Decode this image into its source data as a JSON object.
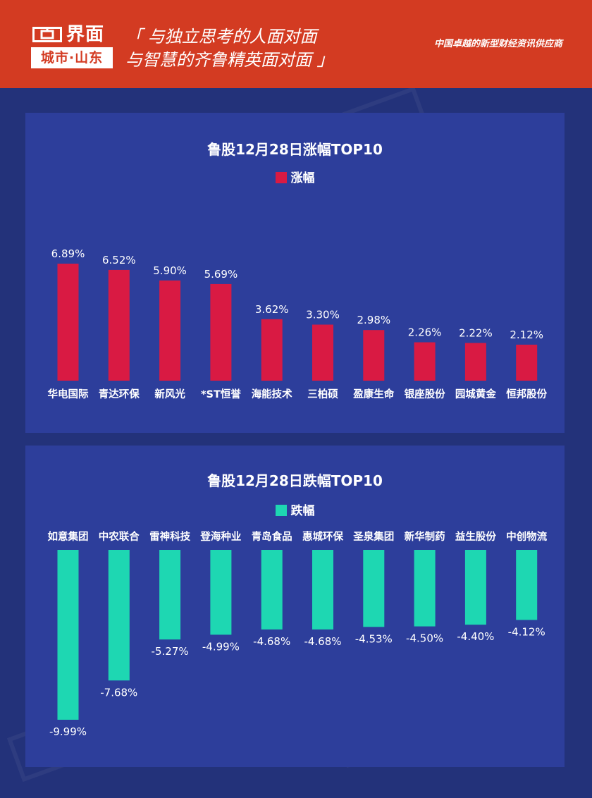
{
  "header": {
    "logo_name": "界面",
    "logo_sub": "城市·山东",
    "slogan_line1": "「 与独立思考的人面对面",
    "slogan_line2": "与智慧的齐鲁精英面对面 」",
    "tagline": "中国卓越的新型财经资讯供应商"
  },
  "colors": {
    "header_bg": "#d33b22",
    "page_bg": "#23327a",
    "panel_bg": "#2d3e9b",
    "rise": "#d91a43",
    "fall": "#1ed7b2"
  },
  "chart_data": [
    {
      "type": "bar",
      "title": "鲁股12月28日涨幅TOP10",
      "legend": "涨幅",
      "categories": [
        "华电国际",
        "青达环保",
        "新风光",
        "*ST恒誉",
        "海能技术",
        "三柏硕",
        "盈康生命",
        "银座股份",
        "园城黄金",
        "恒邦股份"
      ],
      "series": [
        {
          "name": "涨幅",
          "values": [
            6.89,
            6.52,
            5.9,
            5.69,
            3.62,
            3.3,
            2.98,
            2.26,
            2.22,
            2.12
          ]
        }
      ],
      "labels": [
        "6.89%",
        "6.52%",
        "5.90%",
        "5.69%",
        "3.62%",
        "3.30%",
        "2.98%",
        "2.26%",
        "2.22%",
        "2.12%"
      ],
      "ylim": [
        0,
        7
      ]
    },
    {
      "type": "bar",
      "title": "鲁股12月28日跌幅TOP10",
      "legend": "跌幅",
      "categories": [
        "如意集团",
        "中农联合",
        "雷神科技",
        "登海种业",
        "青岛食品",
        "惠城环保",
        "圣泉集团",
        "新华制药",
        "益生股份",
        "中创物流"
      ],
      "series": [
        {
          "name": "跌幅",
          "values": [
            -9.99,
            -7.68,
            -5.27,
            -4.99,
            -4.68,
            -4.68,
            -4.53,
            -4.5,
            -4.4,
            -4.12
          ]
        }
      ],
      "labels": [
        "-9.99%",
        "-7.68%",
        "-5.27%",
        "-4.99%",
        "-4.68%",
        "-4.68%",
        "-4.53%",
        "-4.50%",
        "-4.40%",
        "-4.12%"
      ],
      "ylim": [
        -10,
        0
      ]
    }
  ]
}
